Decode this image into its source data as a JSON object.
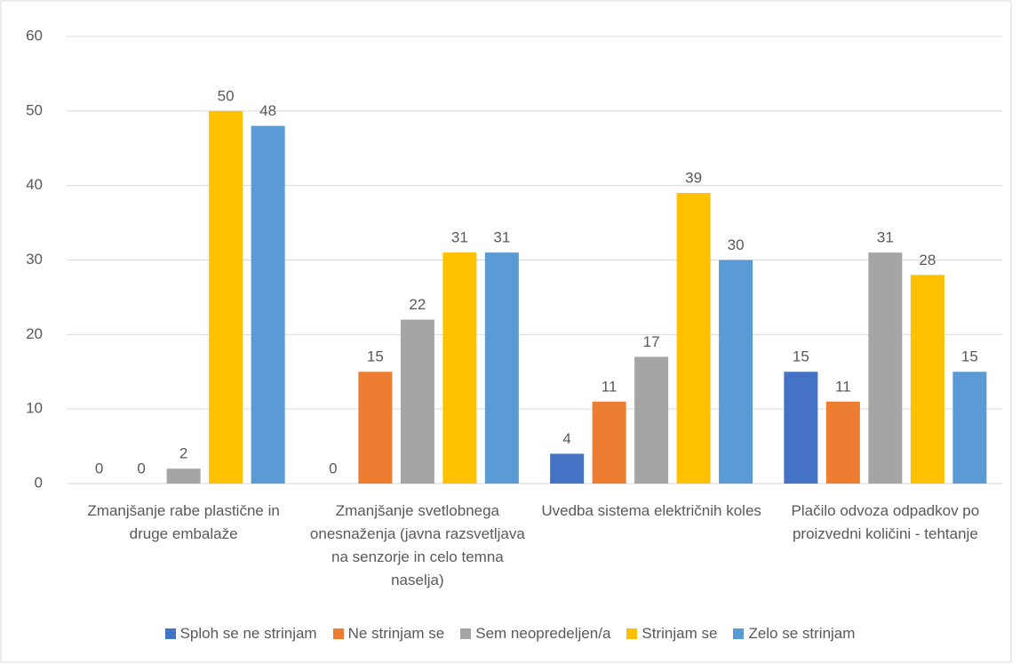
{
  "chart_data": {
    "type": "bar",
    "categories": [
      "Zmanjšanje rabe plastične in druge embalaže",
      "Zmanjšanje svetlobnega onesnaženja (javna razsvetljava na senzorje in celo temna naselja)",
      "Uvedba sistema električnih koles",
      "Plačilo odvoza odpadkov po proizvedni količini - tehtanje"
    ],
    "series": [
      {
        "name": "Sploh se ne strinjam",
        "color": "#4472c4",
        "values": [
          0,
          0,
          4,
          15
        ]
      },
      {
        "name": "Ne strinjam se",
        "color": "#ed7d31",
        "values": [
          0,
          15,
          11,
          11
        ]
      },
      {
        "name": "Sem neopredeljen/a",
        "color": "#a5a5a5",
        "values": [
          2,
          22,
          17,
          31
        ]
      },
      {
        "name": "Strinjam se",
        "color": "#ffc000",
        "values": [
          50,
          31,
          39,
          28
        ]
      },
      {
        "name": "Zelo se strinjam",
        "color": "#5b9bd5",
        "values": [
          48,
          31,
          30,
          15
        ]
      }
    ],
    "ylim": [
      0,
      60
    ],
    "yticks": [
      0,
      10,
      20,
      30,
      40,
      50,
      60
    ],
    "grid": true,
    "legend": "bottom"
  }
}
